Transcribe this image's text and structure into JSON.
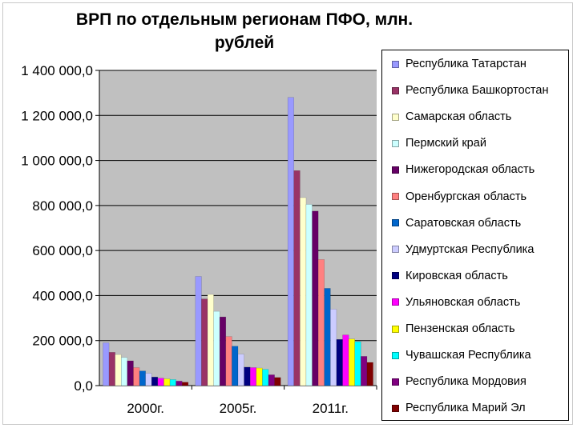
{
  "chart_data": {
    "type": "bar",
    "title": "ВРП по отдельным регионам ПФО, млн. рублей",
    "xlabel": "",
    "ylabel": "",
    "ylim": [
      0,
      1400000
    ],
    "yticks": [
      "0,0",
      "200 000,0",
      "400 000,0",
      "600 000,0",
      "800 000,0",
      "1 000 000,0",
      "1 200 000,0",
      "1 400 000,0"
    ],
    "grid": true,
    "legend_position": "right",
    "categories": [
      "2000г.",
      "2005г.",
      "2011г."
    ],
    "series": [
      {
        "name": "Республика Татарстан",
        "color": "#9999ff",
        "values": [
          190000,
          485000,
          1280000
        ]
      },
      {
        "name": "Республика Башкортостан",
        "color": "#993366",
        "values": [
          148000,
          385000,
          955000
        ]
      },
      {
        "name": "Самарская область",
        "color": "#ffffcc",
        "values": [
          138000,
          405000,
          835000
        ]
      },
      {
        "name": "Пермский край",
        "color": "#ccffff",
        "values": [
          125000,
          330000,
          805000
        ]
      },
      {
        "name": "Нижегородская область",
        "color": "#660066",
        "values": [
          110000,
          305000,
          775000
        ]
      },
      {
        "name": "Оренбургская область",
        "color": "#ff8080",
        "values": [
          80000,
          218000,
          560000
        ]
      },
      {
        "name": "Саратовская область",
        "color": "#0066cc",
        "values": [
          65000,
          175000,
          432000
        ]
      },
      {
        "name": "Удмуртская Республика",
        "color": "#ccccff",
        "values": [
          55000,
          140000,
          340000
        ]
      },
      {
        "name": "Кировская область",
        "color": "#000080",
        "values": [
          38000,
          82000,
          205000
        ]
      },
      {
        "name": "Ульяновская область",
        "color": "#ff00ff",
        "values": [
          33000,
          80000,
          225000
        ]
      },
      {
        "name": "Пензенская область",
        "color": "#ffff00",
        "values": [
          30000,
          78000,
          207000
        ]
      },
      {
        "name": "Чувашская Республика",
        "color": "#00ffff",
        "values": [
          27000,
          72000,
          195000
        ]
      },
      {
        "name": "Республика Мордовия",
        "color": "#800080",
        "values": [
          20000,
          48000,
          130000
        ]
      },
      {
        "name": "Республика Марий Эл",
        "color": "#800000",
        "values": [
          15000,
          36000,
          103000
        ]
      }
    ]
  }
}
